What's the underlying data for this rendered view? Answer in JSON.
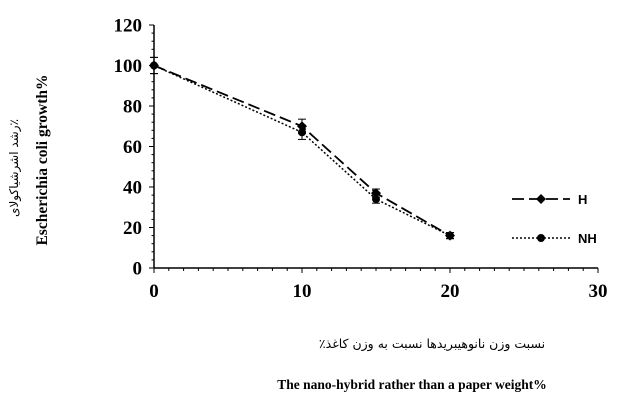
{
  "chart_data": {
    "type": "line",
    "x": [
      0,
      10,
      15,
      20
    ],
    "xlim": [
      0,
      30
    ],
    "ylim": [
      0,
      120
    ],
    "x_ticks": [
      "0",
      "10",
      "20",
      "30"
    ],
    "y_ticks": [
      "0",
      "20",
      "40",
      "60",
      "80",
      "100",
      "120"
    ],
    "xlabel_fa": "نسبت وزن نانوهیبریدها نسبت به وزن کاغذ٪",
    "xlabel_en": "The nano-hybrid rather than a paper weight%",
    "ylabel_fa": "رشد اشرشیاکولای٪",
    "ylabel_en": "Escherichia coli growth%",
    "legend_position": "right",
    "grid": false,
    "series": [
      {
        "name": "H",
        "values": [
          100,
          70,
          37,
          16
        ],
        "errors": [
          4,
          3.5,
          2,
          1.5
        ],
        "color": "#000000",
        "dash": "long-dash",
        "marker": "diamond"
      },
      {
        "name": "NH",
        "values": [
          100,
          67,
          34,
          16
        ],
        "errors": [
          4,
          3.5,
          2,
          1.5
        ],
        "color": "#000000",
        "dash": "dotted",
        "marker": "circle"
      }
    ]
  }
}
